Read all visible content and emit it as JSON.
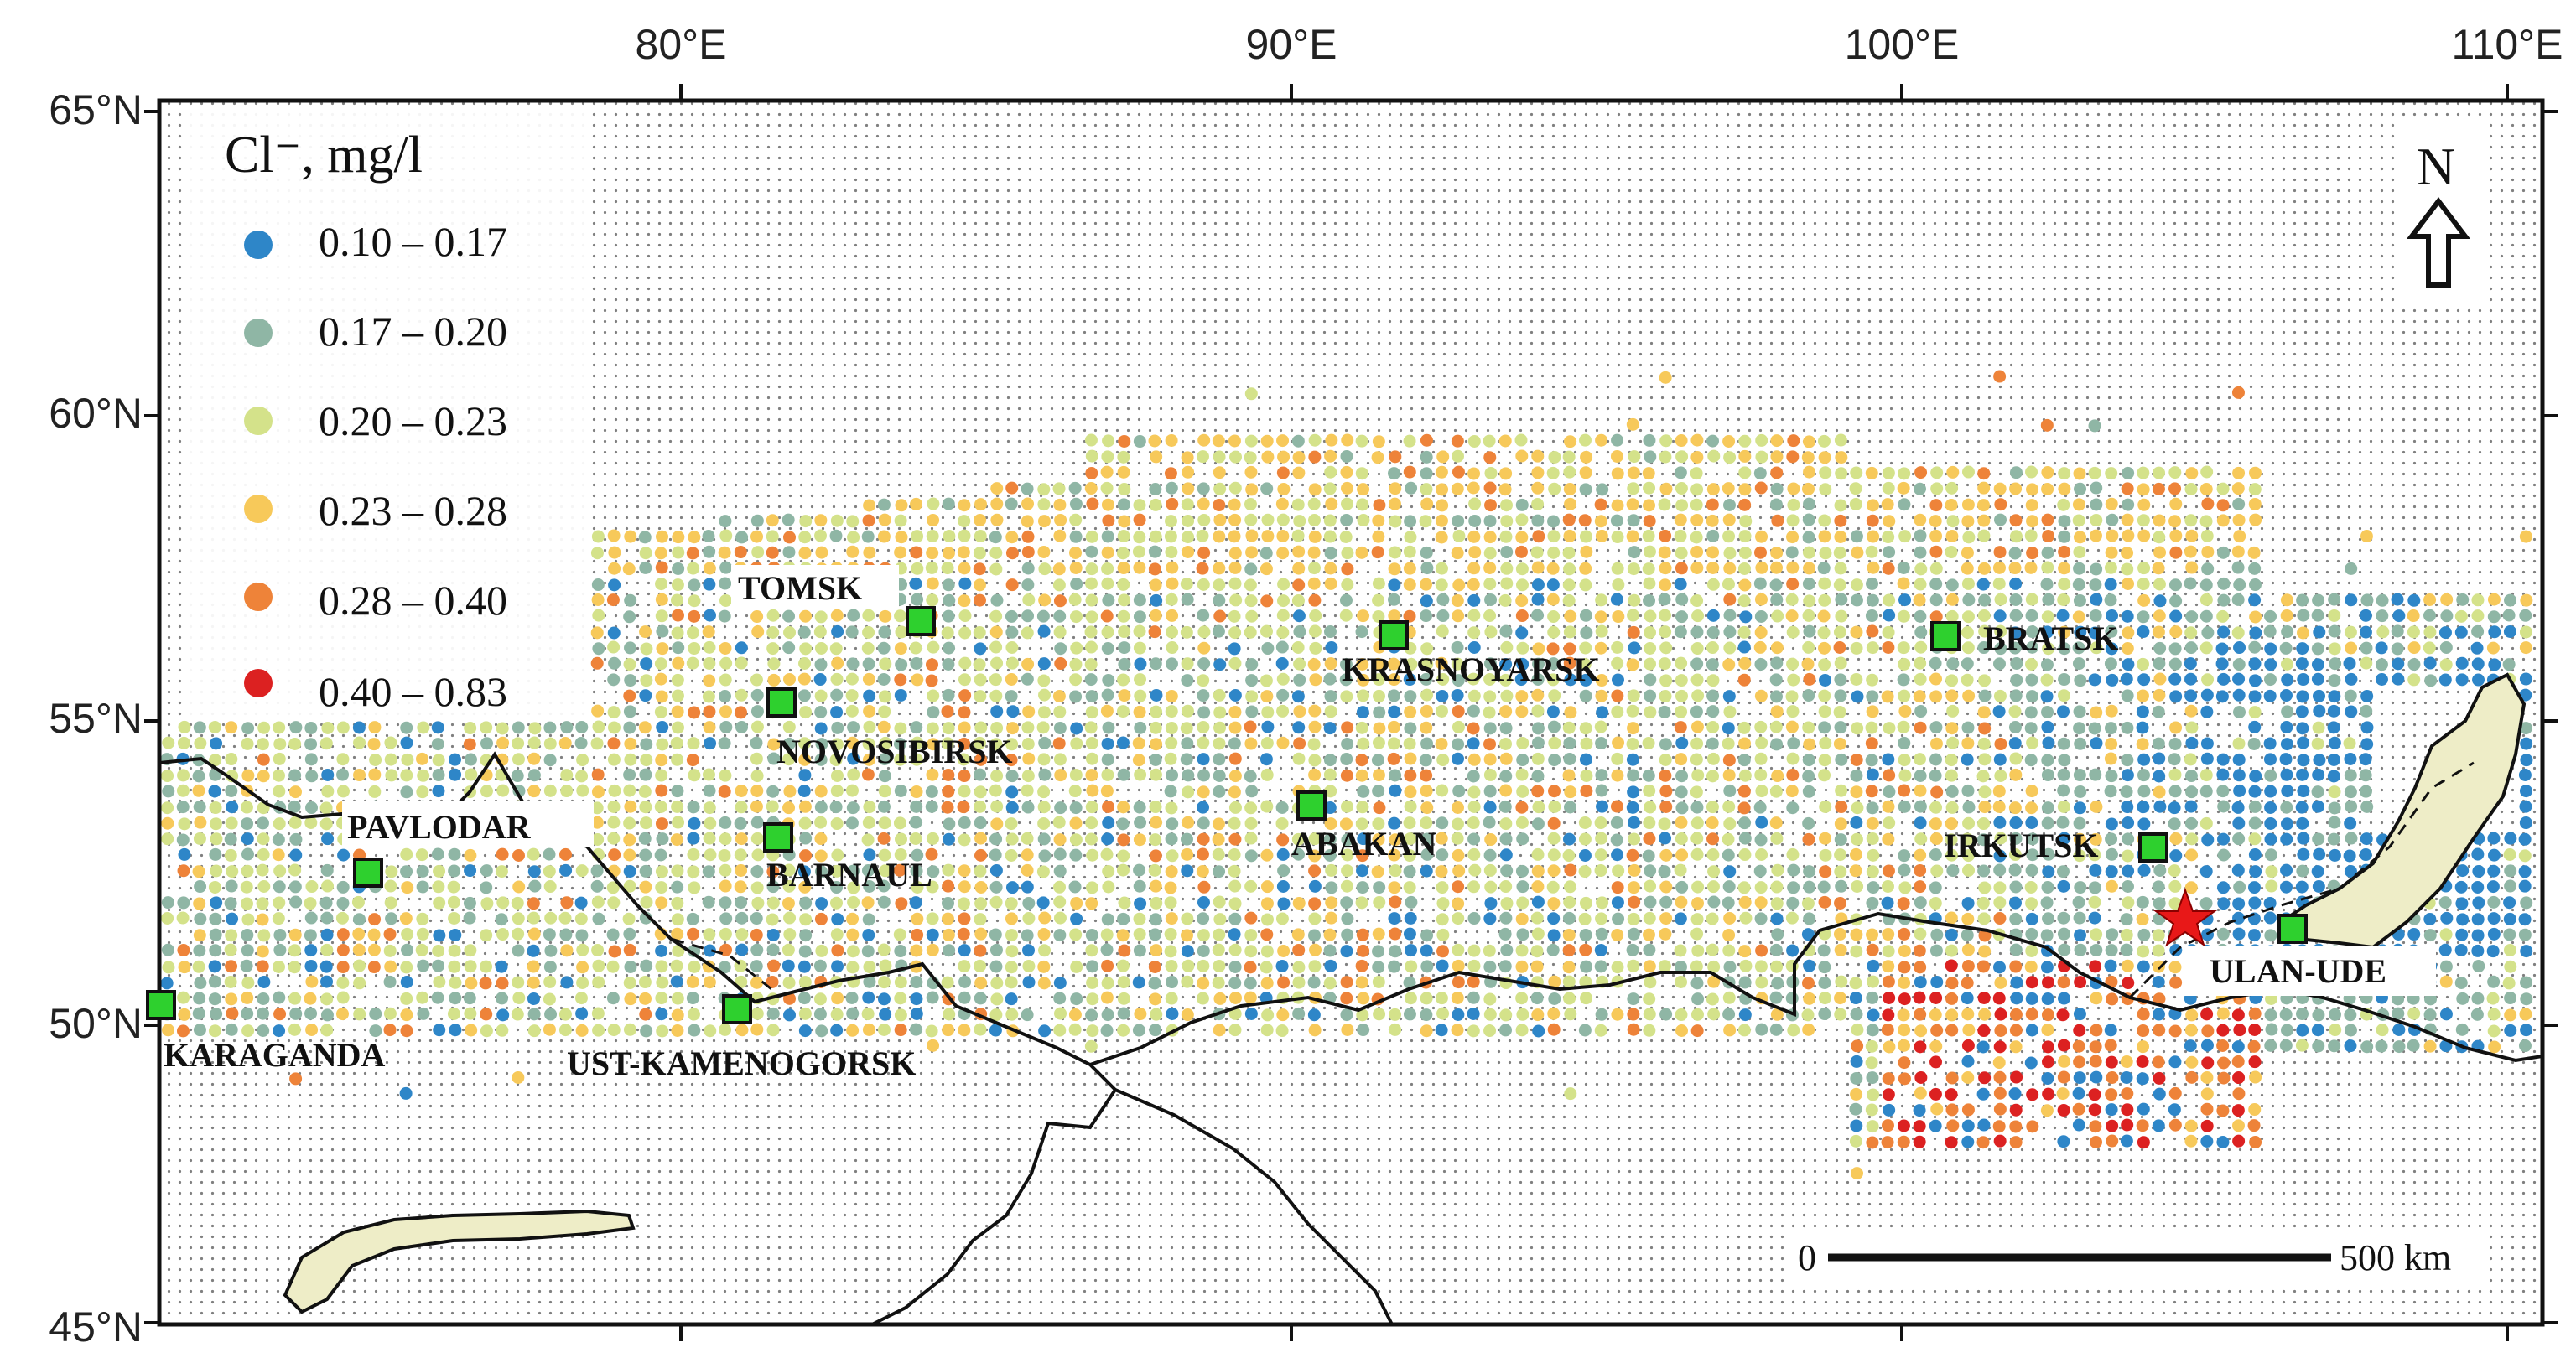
{
  "map": {
    "lon_ticks": [
      "80°E",
      "90°E",
      "100°E",
      "110°E"
    ],
    "lat_ticks": [
      "65°N",
      "60°N",
      "55°N",
      "50°N",
      "45°N"
    ],
    "legend": {
      "title": "Cl⁻, mg/l",
      "classes": [
        {
          "label": "0.10 – 0.17",
          "color": "#2e86c8"
        },
        {
          "label": "0.17 – 0.20",
          "color": "#8fb6a5"
        },
        {
          "label": "0.20 – 0.23",
          "color": "#d4e28a"
        },
        {
          "label": "0.23 – 0.28",
          "color": "#f7c95a"
        },
        {
          "label": "0.28 – 0.40",
          "color": "#ee8339"
        },
        {
          "label": "0.40 – 0.83",
          "color": "#dc2121"
        }
      ]
    },
    "cities": [
      {
        "name": "TOMSK",
        "lon": 84.0,
        "lat": 56.5
      },
      {
        "name": "KRASNOYARSK",
        "lon": 92.0,
        "lat": 56.0
      },
      {
        "name": "BRATSK",
        "lon": 101.6,
        "lat": 56.1
      },
      {
        "name": "NOVOSIBIRSK",
        "lon": 82.9,
        "lat": 55.0
      },
      {
        "name": "PAVLODAR",
        "lon": 76.9,
        "lat": 52.3
      },
      {
        "name": "BARNAUL",
        "lon": 83.8,
        "lat": 53.3
      },
      {
        "name": "ABAKAN",
        "lon": 91.4,
        "lat": 53.7
      },
      {
        "name": "IRKUTSK",
        "lon": 104.3,
        "lat": 52.3
      },
      {
        "name": "ULAN-UDE",
        "lon": 107.6,
        "lat": 51.8
      },
      {
        "name": "KARAGANDA",
        "lon": 73.1,
        "lat": 49.8
      },
      {
        "name": "UST-KAMENOGORSK",
        "lon": 82.6,
        "lat": 49.95
      }
    ],
    "north_label": "N",
    "scale_bar": {
      "start_label": "0",
      "end_label": "500 km"
    },
    "marker": "red-star"
  }
}
